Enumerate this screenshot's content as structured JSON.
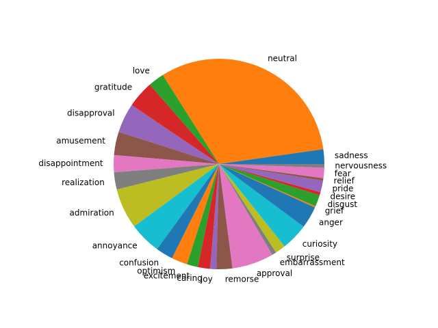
{
  "chart_data": {
    "type": "pie",
    "start_angle_deg": 0,
    "direction": "counterclockwise",
    "slices": [
      {
        "label": "sadness",
        "value": 2.4,
        "color": "#1f77b4"
      },
      {
        "label": "neutral",
        "value": 33.7,
        "color": "#ff7f0e"
      },
      {
        "label": "love",
        "value": 2.6,
        "color": "#2ca02c"
      },
      {
        "label": "gratitude",
        "value": 4.4,
        "color": "#d62728"
      },
      {
        "label": "disapproval",
        "value": 4.8,
        "color": "#9467bd"
      },
      {
        "label": "amusement",
        "value": 3.8,
        "color": "#8c564b"
      },
      {
        "label": "disappointment",
        "value": 2.8,
        "color": "#e377c2"
      },
      {
        "label": "realization",
        "value": 2.8,
        "color": "#7f7f7f"
      },
      {
        "label": "admiration",
        "value": 6.6,
        "color": "#bcbd22"
      },
      {
        "label": "annoyance",
        "value": 5.2,
        "color": "#17becf"
      },
      {
        "label": "confusion",
        "value": 2.8,
        "color": "#1f77b4"
      },
      {
        "label": "optimism",
        "value": 2.6,
        "color": "#ff7f0e"
      },
      {
        "label": "excitement",
        "value": 1.8,
        "color": "#2ca02c"
      },
      {
        "label": "caring",
        "value": 2.0,
        "color": "#d62728"
      },
      {
        "label": "joy",
        "value": 1.0,
        "color": "#9467bd"
      },
      {
        "label": "remorse",
        "value": 2.6,
        "color": "#8c564b"
      },
      {
        "label": "approval",
        "value": 6.8,
        "color": "#e377c2"
      },
      {
        "label": "embarrassment",
        "value": 0.7,
        "color": "#7f7f7f"
      },
      {
        "label": "surprise",
        "value": 1.7,
        "color": "#bcbd22"
      },
      {
        "label": "curiosity",
        "value": 4.4,
        "color": "#17becf"
      },
      {
        "label": "anger",
        "value": 3.6,
        "color": "#1f77b4"
      },
      {
        "label": "grief",
        "value": 0.2,
        "color": "#ff7f0e"
      },
      {
        "label": "disgust",
        "value": 1.9,
        "color": "#2ca02c"
      },
      {
        "label": "desire",
        "value": 0.5,
        "color": "#d62728"
      },
      {
        "label": "pride",
        "value": 1.9,
        "color": "#9467bd"
      },
      {
        "label": "relief",
        "value": 0.4,
        "color": "#8c564b"
      },
      {
        "label": "fear",
        "value": 1.7,
        "color": "#e377c2"
      },
      {
        "label": "nervousness",
        "value": 0.6,
        "color": "#7f7f7f"
      }
    ]
  }
}
